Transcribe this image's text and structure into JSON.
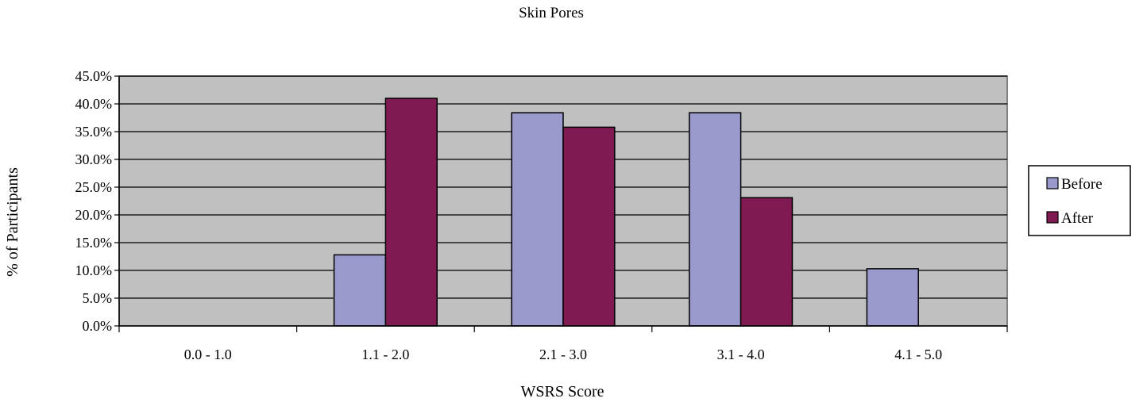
{
  "chart_data": {
    "type": "bar",
    "title": "Skin Pores",
    "xlabel": "WSRS Score",
    "ylabel": "% of Participants",
    "categories": [
      "0.0 - 1.0",
      "1.1 - 2.0",
      "2.1 - 3.0",
      "3.1 - 4.0",
      "4.1 - 5.0"
    ],
    "series": [
      {
        "name": "Before",
        "values": [
          0.0,
          12.8,
          38.4,
          38.4,
          10.3
        ]
      },
      {
        "name": "After",
        "values": [
          0.0,
          41.0,
          35.8,
          23.1,
          0.0
        ]
      }
    ],
    "ylim": [
      0,
      45
    ],
    "yticks": [
      "0.0%",
      "5.0%",
      "10.0%",
      "15.0%",
      "20.0%",
      "25.0%",
      "30.0%",
      "35.0%",
      "40.0%",
      "45.0%"
    ],
    "grid": true,
    "legend_position": "right",
    "colors": {
      "plot_background": "#C0C0C0",
      "Before": "#9999CC",
      "After": "#7F1A52",
      "gridline": "#000000",
      "bar_outline": "#000000"
    }
  }
}
